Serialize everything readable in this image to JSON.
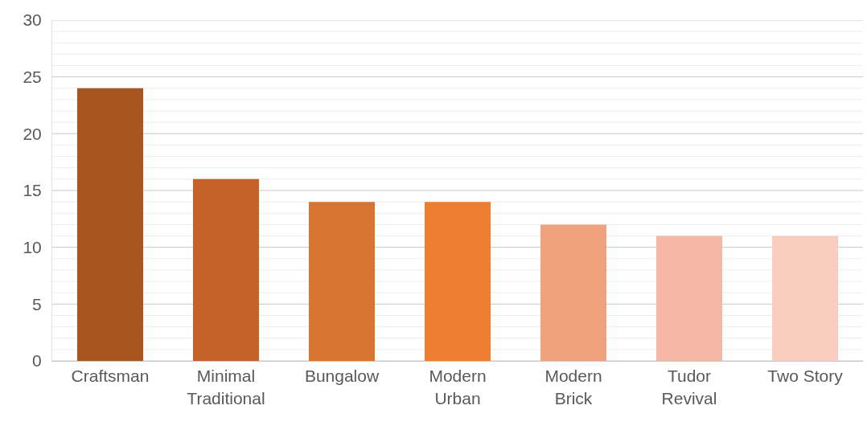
{
  "chart_data": {
    "type": "bar",
    "categories": [
      "Craftsman",
      "Minimal Traditional",
      "Bungalow",
      "Modern Urban",
      "Modern Brick",
      "Tudor Revival",
      "Two Story"
    ],
    "values": [
      24,
      16,
      14,
      14,
      12,
      11,
      11
    ],
    "colors": [
      "#a85621",
      "#c4622a",
      "#d97331",
      "#ed7d31",
      "#f0a07a",
      "#f4b8a4",
      "#f7cdc0"
    ],
    "ylim": [
      0,
      30
    ],
    "yticks": [
      0,
      {
        "value": 1,
        "label": null
      },
      {
        "value": 2,
        "label": null
      },
      {
        "value": 3,
        "label": null
      },
      {
        "value": 4,
        "label": null
      },
      5,
      {
        "value": 6,
        "label": null
      },
      {
        "value": 7,
        "label": null
      },
      {
        "value": 8,
        "label": null
      },
      {
        "value": 9,
        "label": null
      },
      10,
      {
        "value": 11,
        "label": null
      },
      {
        "value": 12,
        "label": null
      },
      {
        "value": 13,
        "label": null
      },
      {
        "value": 14,
        "label": null
      },
      15,
      {
        "value": 16,
        "label": null
      },
      {
        "value": 17,
        "label": null
      },
      {
        "value": 18,
        "label": null
      },
      {
        "value": 19,
        "label": null
      },
      20,
      {
        "value": 21,
        "label": null
      },
      {
        "value": 22,
        "label": null
      },
      {
        "value": 23,
        "label": null
      },
      {
        "value": 24,
        "label": null
      },
      25,
      {
        "value": 26,
        "label": null
      },
      {
        "value": 27,
        "label": null
      },
      {
        "value": 28,
        "label": null
      },
      {
        "value": 29,
        "label": null
      },
      30
    ],
    "grid": true
  }
}
